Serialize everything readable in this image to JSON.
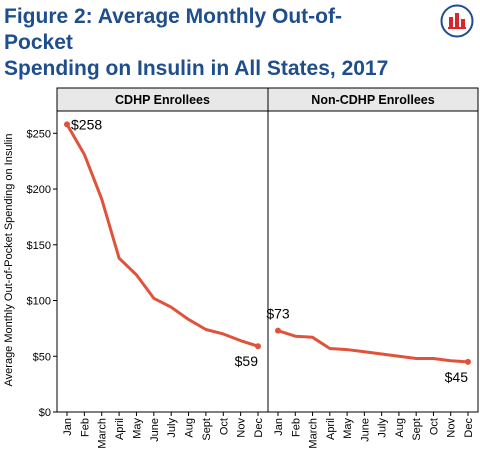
{
  "title_line1": "Figure 2: Average Monthly Out-of-Pocket",
  "title_line2": "Spending on Insulin in All States, 2017",
  "colors": {
    "title": "#1f4e8c",
    "line": "#e0533a",
    "header_bg": "#e8e8e8"
  },
  "chart_data": {
    "type": "line",
    "ylabel": "Average Monthly Out-of-Pocket Spending on Insulin",
    "ylim": [
      0,
      270
    ],
    "yticks": [
      0,
      50,
      100,
      150,
      200,
      250
    ],
    "ytick_labels": [
      "$0",
      "$50",
      "$100",
      "$150",
      "$200",
      "$250"
    ],
    "categories": [
      "Jan",
      "Feb",
      "March",
      "April",
      "May",
      "June",
      "July",
      "Aug",
      "Sept",
      "Oct",
      "Nov",
      "Dec"
    ],
    "panels": [
      {
        "title": "CDHP Enrollees",
        "values": [
          258,
          231,
          191,
          138,
          123,
          102,
          94,
          83,
          74,
          70,
          64,
          59
        ],
        "labels": {
          "first": "$258",
          "last": "$59"
        }
      },
      {
        "title": "Non-CDHP Enrollees",
        "values": [
          73,
          68,
          67,
          57,
          56,
          54,
          52,
          50,
          48,
          48,
          46,
          45
        ],
        "labels": {
          "first": "$73",
          "last": "$45"
        }
      }
    ]
  }
}
